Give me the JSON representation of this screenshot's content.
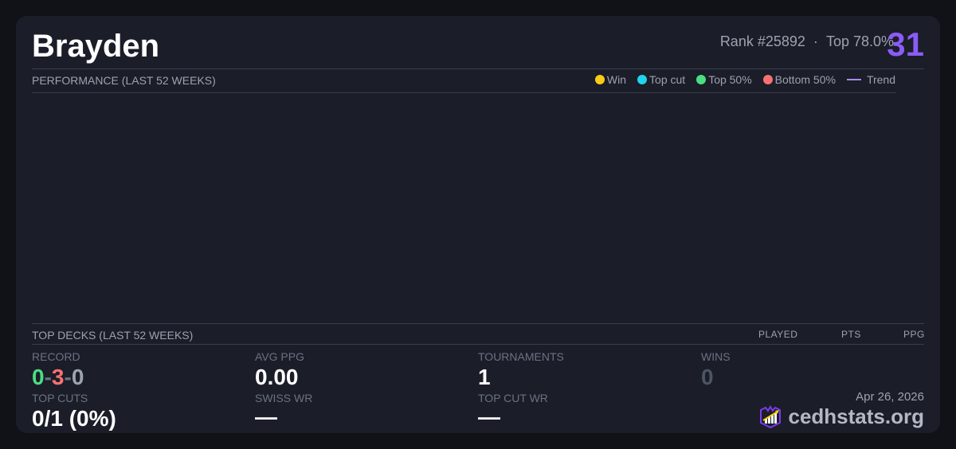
{
  "player": {
    "name": "Brayden",
    "rank": "Rank #25892",
    "separator": "·",
    "top_percent": "Top 78.0%",
    "score": "31"
  },
  "performance": {
    "title": "PERFORMANCE (LAST 52 WEEKS)",
    "legend": [
      {
        "label": "Win",
        "color": "#facc15"
      },
      {
        "label": "Top cut",
        "color": "#22d3ee"
      },
      {
        "label": "Top 50%",
        "color": "#4ade80"
      },
      {
        "label": "Bottom 50%",
        "color": "#f87171"
      },
      {
        "label": "Trend",
        "color": "#a78bfa"
      }
    ]
  },
  "top_decks": {
    "title": "TOP DECKS (LAST 52 WEEKS)",
    "columns": [
      "PLAYED",
      "PTS",
      "PPG"
    ]
  },
  "stats": {
    "record": {
      "label": "RECORD",
      "wins": "0",
      "losses": "3",
      "draws": "0",
      "sep": "-"
    },
    "avg_ppg": {
      "label": "AVG PPG",
      "value": "0.00"
    },
    "tournaments": {
      "label": "TOURNAMENTS",
      "value": "1"
    },
    "wins": {
      "label": "WINS",
      "value": "0"
    },
    "top_cuts": {
      "label": "TOP CUTS",
      "value": "0/1 (0%)"
    },
    "swiss_wr": {
      "label": "SWISS WR",
      "value": "—"
    },
    "top_cut_wr": {
      "label": "TOP CUT WR",
      "value": "—"
    }
  },
  "footer": {
    "date": "Apr 26, 2026",
    "brand": "cedhstats.org"
  }
}
